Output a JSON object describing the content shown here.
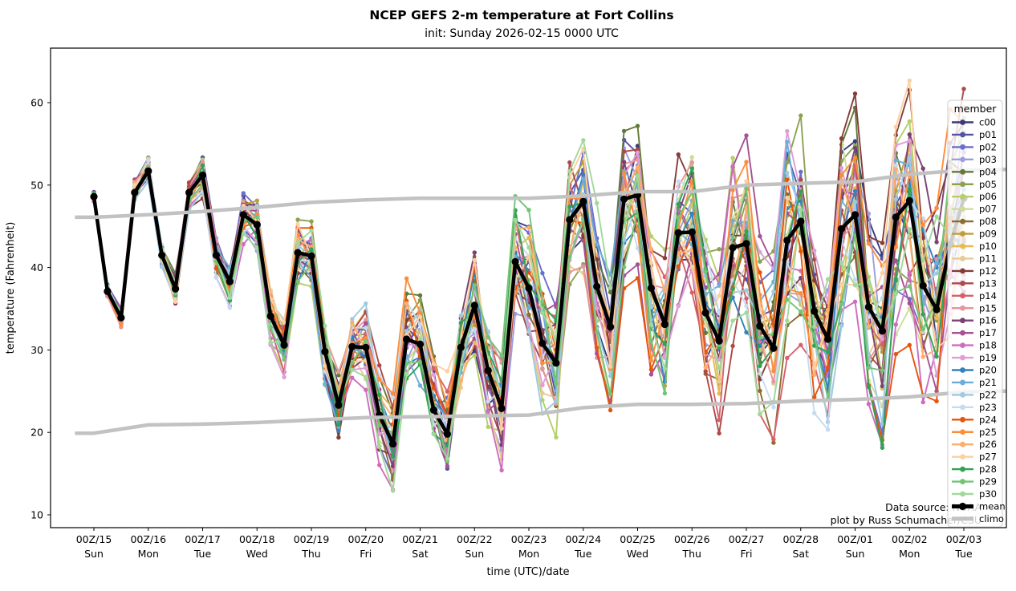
{
  "title": "NCEP GEFS 2-m temperature at Fort Collins",
  "subtitle": "init: Sunday 2026-02-15 0000 UTC",
  "credits": {
    "line1": "Data source: NOAA",
    "line2": "plot by Russ Schumacher/CSU"
  },
  "chart_data": {
    "type": "line",
    "title": "NCEP GEFS 2-m temperature at Fort Collins",
    "subtitle": "init: Sunday 2026-02-15 0000 UTC",
    "xlabel": "time (UTC)/date",
    "ylabel": "temperature (Fahrenheit)",
    "ylim": [
      8.4,
      66.6
    ],
    "yticks": [
      10,
      20,
      30,
      40,
      50,
      60
    ],
    "grid": false,
    "time_step_hours": 6,
    "xtick_labels": [
      {
        "utc": "00Z/15",
        "day": "Sun"
      },
      {
        "utc": "00Z/16",
        "day": "Mon"
      },
      {
        "utc": "00Z/17",
        "day": "Tue"
      },
      {
        "utc": "00Z/18",
        "day": "Wed"
      },
      {
        "utc": "00Z/19",
        "day": "Thu"
      },
      {
        "utc": "00Z/20",
        "day": "Fri"
      },
      {
        "utc": "00Z/21",
        "day": "Sat"
      },
      {
        "utc": "00Z/22",
        "day": "Sun"
      },
      {
        "utc": "00Z/23",
        "day": "Mon"
      },
      {
        "utc": "00Z/24",
        "day": "Tue"
      },
      {
        "utc": "00Z/25",
        "day": "Wed"
      },
      {
        "utc": "00Z/26",
        "day": "Thu"
      },
      {
        "utc": "00Z/27",
        "day": "Fri"
      },
      {
        "utc": "00Z/28",
        "day": "Sat"
      },
      {
        "utc": "00Z/01",
        "day": "Sun"
      },
      {
        "utc": "00Z/02",
        "day": "Mon"
      },
      {
        "utc": "00Z/03",
        "day": "Tue"
      }
    ],
    "legend": {
      "title": "member",
      "position": "right-inside",
      "mean_label": "mean",
      "climo_label": "climo"
    },
    "mean": {
      "name": "mean",
      "color": "#000000",
      "values": [
        48.6,
        37.1,
        33.9,
        49.1,
        51.7,
        41.5,
        37.4,
        49.1,
        51.2,
        41.5,
        38.3,
        46.4,
        45.2,
        34.1,
        30.6,
        41.8,
        41.4,
        29.8,
        23.3,
        30.4,
        30.3,
        22.1,
        18.6,
        31.3,
        30.7,
        22.7,
        19.8,
        30.3,
        35.4,
        27.5,
        22.9,
        40.7,
        37.5,
        30.8,
        28.4,
        45.8,
        48.0,
        37.7,
        32.8,
        48.3,
        48.8,
        37.5,
        33.1,
        44.2,
        44.3,
        34.5,
        31.1,
        42.4,
        42.9,
        32.9,
        30.2,
        43.3,
        45.6,
        34.7,
        31.3,
        44.7,
        46.4,
        35.2,
        32.3,
        46.1,
        48.1,
        37.8,
        34.9,
        42.8,
        48.4
      ]
    },
    "climo": {
      "name": "climo",
      "color": "#c2c2c2",
      "upper_daily": [
        46.1,
        46.4,
        46.8,
        47.3,
        47.9,
        48.2,
        48.4,
        48.4,
        48.4,
        48.7,
        49.2,
        49.2,
        50.0,
        50.2,
        50.4,
        51.3,
        51.8
      ],
      "lower_daily": [
        19.9,
        20.9,
        21.0,
        21.2,
        21.5,
        21.8,
        21.9,
        22.0,
        22.1,
        23.0,
        23.4,
        23.4,
        23.5,
        23.8,
        24.0,
        24.3,
        24.9
      ]
    },
    "members": [
      {
        "name": "c00",
        "color": "#393b79"
      },
      {
        "name": "p01",
        "color": "#5254a3"
      },
      {
        "name": "p02",
        "color": "#6b6ecf"
      },
      {
        "name": "p03",
        "color": "#9c9ede"
      },
      {
        "name": "p04",
        "color": "#637939"
      },
      {
        "name": "p05",
        "color": "#8ca252"
      },
      {
        "name": "p06",
        "color": "#b5cf6b"
      },
      {
        "name": "p07",
        "color": "#cedb9c"
      },
      {
        "name": "p08",
        "color": "#8c6d31"
      },
      {
        "name": "p09",
        "color": "#bd9e39"
      },
      {
        "name": "p10",
        "color": "#e7ba52"
      },
      {
        "name": "p11",
        "color": "#e7cb94"
      },
      {
        "name": "p12",
        "color": "#843c39"
      },
      {
        "name": "p13",
        "color": "#ad494a"
      },
      {
        "name": "p14",
        "color": "#d6616b"
      },
      {
        "name": "p15",
        "color": "#e7969c"
      },
      {
        "name": "p16",
        "color": "#7b4173"
      },
      {
        "name": "p17",
        "color": "#a55194"
      },
      {
        "name": "p18",
        "color": "#ce6dbd"
      },
      {
        "name": "p19",
        "color": "#de9ed6"
      },
      {
        "name": "p20",
        "color": "#3182bd"
      },
      {
        "name": "p21",
        "color": "#6baed6"
      },
      {
        "name": "p22",
        "color": "#9ecae1"
      },
      {
        "name": "p23",
        "color": "#c6dbef"
      },
      {
        "name": "p24",
        "color": "#e6550d"
      },
      {
        "name": "p25",
        "color": "#fd8d3c"
      },
      {
        "name": "p26",
        "color": "#fdae6b"
      },
      {
        "name": "p27",
        "color": "#fdd0a2"
      },
      {
        "name": "p28",
        "color": "#31a354"
      },
      {
        "name": "p29",
        "color": "#74c476"
      },
      {
        "name": "p30",
        "color": "#a1d99b"
      }
    ],
    "member_spread_halfwidth": [
      0.5,
      0.7,
      0.8,
      1.0,
      1.1,
      1.3,
      1.5,
      1.6,
      1.8,
      1.9,
      2.1,
      2.3,
      2.4,
      2.6,
      2.7,
      2.9,
      3.1,
      3.2,
      3.4,
      3.5,
      3.7,
      3.9,
      4.0,
      4.2,
      4.3,
      4.5,
      4.7,
      4.8,
      5.0,
      5.1,
      5.3,
      5.5,
      5.6,
      5.8,
      5.9,
      6.1,
      6.3,
      6.4,
      6.6,
      6.7,
      6.9,
      7.1,
      7.2,
      7.4,
      7.5,
      7.7,
      7.9,
      8.0,
      8.2,
      8.3,
      8.5,
      8.7,
      8.8,
      9.0,
      9.1,
      9.3,
      9.5,
      9.6,
      9.8,
      9.9,
      10.1,
      10.3,
      10.4,
      10.5,
      10.5
    ],
    "value_clamp": [
      11.0,
      64.3
    ]
  }
}
